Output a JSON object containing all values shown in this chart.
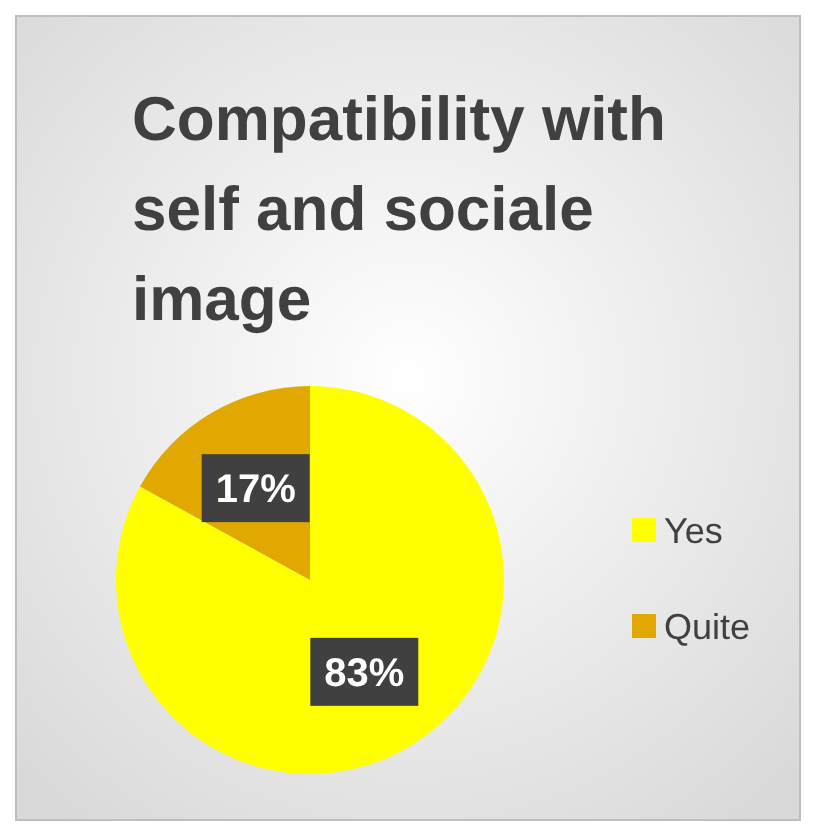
{
  "chart_data": {
    "type": "pie",
    "title": "Compatibility with self and sociale image",
    "categories": [
      "Yes",
      "Quite"
    ],
    "values": [
      83,
      17
    ],
    "colors": [
      "#ffff00",
      "#e0a800"
    ],
    "value_labels": [
      "83%",
      "17%"
    ],
    "legend": "right"
  }
}
